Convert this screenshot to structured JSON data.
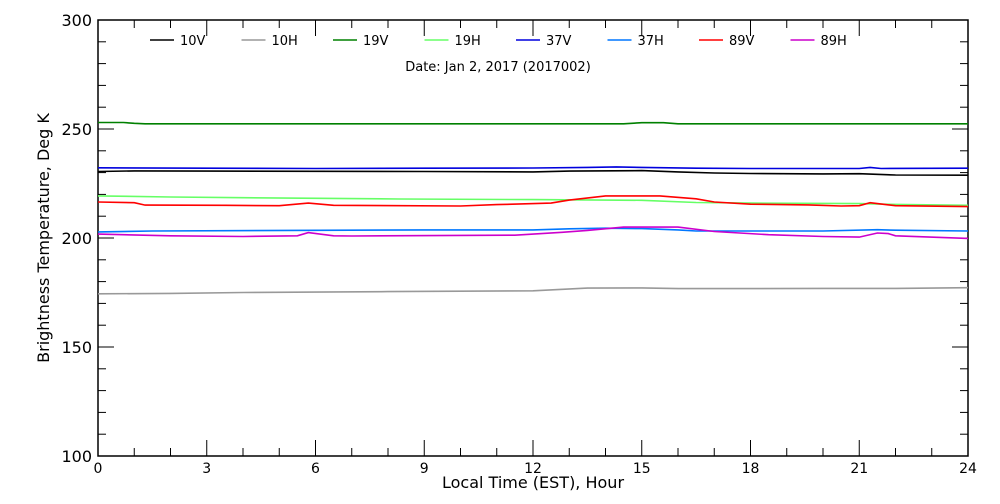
{
  "chart_data": {
    "type": "line",
    "title": "Date: Jan  2, 2017 (2017002)",
    "xlabel": "Local Time (EST), Hour",
    "ylabel": "Brightness Temperature, Deg K",
    "xlim": [
      0,
      24
    ],
    "ylim": [
      100,
      300
    ],
    "xticks": [
      0,
      3,
      6,
      9,
      12,
      15,
      18,
      21,
      24
    ],
    "yticks": [
      100,
      150,
      200,
      250,
      300
    ],
    "grid": false,
    "legend_position": "top",
    "series": [
      {
        "name": "10V",
        "color": "#000000",
        "x": [
          0,
          1,
          3,
          6,
          9,
          12,
          13,
          15,
          16,
          17,
          18,
          20,
          21,
          22,
          24
        ],
        "y": [
          230.5,
          230.8,
          230.7,
          230.6,
          230.5,
          230.3,
          230.7,
          230.9,
          230.3,
          229.8,
          229.6,
          229.4,
          229.5,
          228.9,
          228.8
        ]
      },
      {
        "name": "10H",
        "color": "#999999",
        "x": [
          0,
          2,
          4,
          6,
          8,
          10,
          12,
          13.5,
          15,
          16,
          18,
          20,
          22,
          24
        ],
        "y": [
          174.4,
          174.6,
          175.0,
          175.2,
          175.4,
          175.6,
          175.8,
          177.0,
          177.1,
          176.8,
          176.8,
          176.9,
          176.9,
          177.2
        ]
      },
      {
        "name": "19V",
        "color": "#008000",
        "x": [
          0,
          0.7,
          1.0,
          1.3,
          14.5,
          15,
          15.6,
          16,
          24
        ],
        "y": [
          253.0,
          253.0,
          252.6,
          252.4,
          252.4,
          252.9,
          252.9,
          252.4,
          252.4
        ]
      },
      {
        "name": "19H",
        "color": "#66ff66",
        "x": [
          0,
          2,
          4,
          8.3,
          12,
          15,
          16.5,
          18,
          21,
          22,
          24
        ],
        "y": [
          219.3,
          218.8,
          218.5,
          217.9,
          217.6,
          217.3,
          216.3,
          216.0,
          215.8,
          215.4,
          215.0
        ]
      },
      {
        "name": "37V",
        "color": "#0000dd",
        "x": [
          0,
          3,
          6,
          9,
          12,
          13.5,
          14.3,
          15,
          16.5,
          18,
          21,
          21.3,
          21.6,
          24
        ],
        "y": [
          232.2,
          232.0,
          231.9,
          232.0,
          232.1,
          232.4,
          232.6,
          232.4,
          232.0,
          231.9,
          231.9,
          232.4,
          231.9,
          232.0
        ]
      },
      {
        "name": "37H",
        "color": "#0077ff",
        "x": [
          0,
          1.5,
          9,
          12,
          13,
          14,
          15,
          16,
          16.5,
          20,
          21.5,
          22,
          24
        ],
        "y": [
          202.8,
          203.2,
          203.7,
          203.7,
          204.2,
          204.5,
          204.3,
          203.7,
          203.2,
          203.2,
          203.8,
          203.6,
          203.2
        ]
      },
      {
        "name": "89V",
        "color": "#ff0000",
        "x": [
          0,
          1,
          1.3,
          3.5,
          5,
          5.8,
          6.5,
          10,
          11,
          12.5,
          13,
          14,
          15.5,
          16.5,
          17,
          18,
          19.6,
          20.5,
          21,
          21.3,
          21.7,
          22,
          24
        ],
        "y": [
          216.5,
          216.2,
          215.1,
          215.0,
          214.8,
          216.0,
          215.0,
          214.7,
          215.3,
          216.0,
          217.4,
          219.3,
          219.3,
          218.0,
          216.5,
          215.5,
          215.2,
          214.7,
          214.8,
          216.2,
          215.4,
          214.8,
          214.4
        ]
      },
      {
        "name": "89H",
        "color": "#cc00cc",
        "x": [
          0,
          2,
          4,
          5.5,
          5.8,
          6.5,
          7,
          11.5,
          12.8,
          13.5,
          14.5,
          16,
          17,
          18.5,
          20,
          21,
          21.5,
          21.8,
          22,
          24
        ],
        "y": [
          201.8,
          201.0,
          200.7,
          201.0,
          202.5,
          201.0,
          200.9,
          201.3,
          202.6,
          203.5,
          205.0,
          205.0,
          203.0,
          201.5,
          200.7,
          200.4,
          202.3,
          202.0,
          201.0,
          199.8
        ]
      }
    ]
  }
}
